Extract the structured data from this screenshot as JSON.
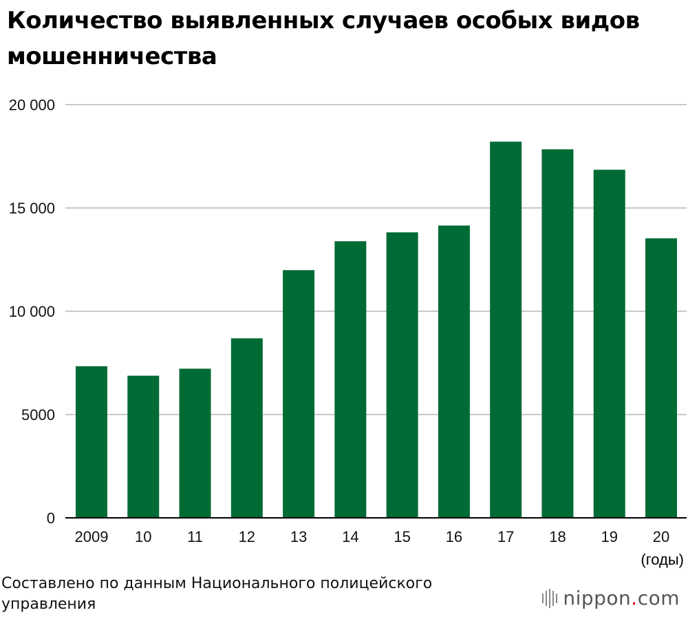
{
  "title": "Количество выявленных случаев особых видов мошенничества",
  "x_unit_label": "(годы)",
  "source": "Составлено по данным Национального полицейского управления",
  "logo": {
    "name": "nippon",
    "dot": ".",
    "suffix": "com"
  },
  "colors": {
    "bar": "#006b35",
    "grid": "#c8c8c8",
    "axis": "#000000"
  },
  "chart_data": {
    "type": "bar",
    "categories": [
      "2009",
      "10",
      "11",
      "12",
      "13",
      "14",
      "15",
      "16",
      "17",
      "18",
      "19",
      "20"
    ],
    "values": [
      7340,
      6880,
      7220,
      8690,
      11990,
      13390,
      13820,
      14150,
      18210,
      17840,
      16850,
      13530
    ],
    "title": "Количество выявленных случаев особых видов мошенничества",
    "xlabel": "(годы)",
    "ylabel": "",
    "ylim": [
      0,
      20000
    ],
    "yticks": [
      0,
      5000,
      10000,
      15000,
      20000
    ],
    "ytick_labels": [
      "0",
      "5000",
      "10 000",
      "15 000",
      "20 000"
    ],
    "grid": true,
    "legend": "none"
  }
}
